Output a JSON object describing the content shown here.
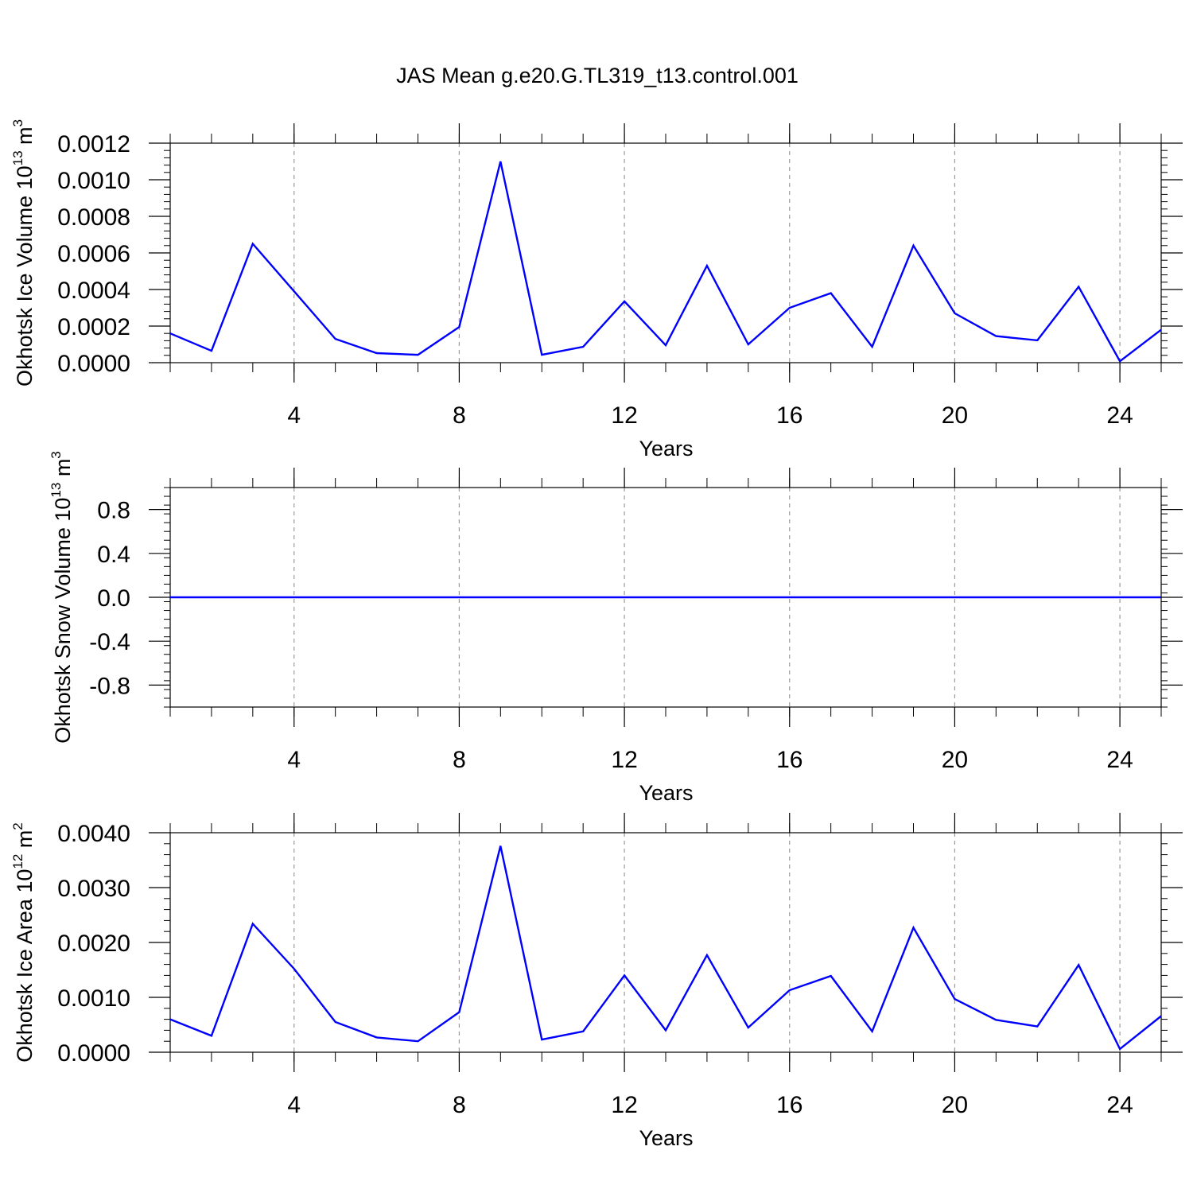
{
  "title": "JAS Mean g.e20.G.TL319_t13.control.001",
  "colors": {
    "line": "#0000ff",
    "axis": "#000000",
    "grid": "#9a9a9a",
    "background": "#ffffff"
  },
  "chart_data": [
    {
      "type": "line",
      "title": "JAS Mean g.e20.G.TL319_t13.control.001",
      "xlabel": "Years",
      "ylabel": {
        "text": "Okhotsk Ice Volume 10",
        "exponent": "13",
        "unit": "m",
        "unit_exponent": "3"
      },
      "xlim": [
        1,
        25
      ],
      "ylim": [
        0,
        0.0012
      ],
      "xticks": [
        4,
        8,
        12,
        16,
        20,
        24
      ],
      "xtick_labels": [
        "4",
        "8",
        "12",
        "16",
        "20",
        "24"
      ],
      "yticks": [
        0,
        0.0002,
        0.0004,
        0.0006,
        0.0008,
        0.001,
        0.0012
      ],
      "ytick_labels": [
        "0.0000",
        "0.0002",
        "0.0004",
        "0.0006",
        "0.0008",
        "0.0010",
        "0.0012"
      ],
      "grid": "vertical dashed at major x ticks",
      "x": [
        1,
        2,
        3,
        4,
        5,
        6,
        7,
        8,
        9,
        10,
        11,
        12,
        13,
        14,
        15,
        16,
        17,
        18,
        19,
        20,
        21,
        22,
        23,
        24,
        25
      ],
      "series": [
        {
          "values": [
            0.00016,
            6.5e-05,
            0.00065,
            0.00039,
            0.00013,
            5.2e-05,
            4.3e-05,
            0.000195,
            0.0011,
            4.3e-05,
            8.7e-05,
            0.000335,
            9.5e-05,
            0.00053,
            0.0001,
            0.0003,
            0.00038,
            8.7e-05,
            0.00064,
            0.00027,
            0.000145,
            0.000122,
            0.000415,
            8e-06,
            0.00018
          ]
        }
      ]
    },
    {
      "type": "line",
      "xlabel": "Years",
      "ylabel": {
        "text": "Okhotsk Snow Volume 10",
        "exponent": "13",
        "unit": "m",
        "unit_exponent": "3"
      },
      "xlim": [
        1,
        25
      ],
      "ylim": [
        -1,
        1
      ],
      "xticks": [
        4,
        8,
        12,
        16,
        20,
        24
      ],
      "xtick_labels": [
        "4",
        "8",
        "12",
        "16",
        "20",
        "24"
      ],
      "yticks": [
        -0.8,
        -0.4,
        0,
        0.4,
        0.8
      ],
      "ytick_labels": [
        "-0.8",
        "-0.4",
        "0.0",
        "0.4",
        "0.8"
      ],
      "grid": "vertical dashed at major x ticks",
      "x": [
        1,
        2,
        3,
        4,
        5,
        6,
        7,
        8,
        9,
        10,
        11,
        12,
        13,
        14,
        15,
        16,
        17,
        18,
        19,
        20,
        21,
        22,
        23,
        24,
        25
      ],
      "series": [
        {
          "values": [
            0,
            0,
            0,
            0,
            0,
            0,
            0,
            0,
            0,
            0,
            0,
            0,
            0,
            0,
            0,
            0,
            0,
            0,
            0,
            0,
            0,
            0,
            0,
            0,
            0
          ]
        }
      ]
    },
    {
      "type": "line",
      "xlabel": "Years",
      "ylabel": {
        "text": "Okhotsk Ice Area 10",
        "exponent": "12",
        "unit": "m",
        "unit_exponent": "2"
      },
      "xlim": [
        1,
        25
      ],
      "ylim": [
        0,
        0.004
      ],
      "xticks": [
        4,
        8,
        12,
        16,
        20,
        24
      ],
      "xtick_labels": [
        "4",
        "8",
        "12",
        "16",
        "20",
        "24"
      ],
      "yticks": [
        0,
        0.001,
        0.002,
        0.003,
        0.004
      ],
      "ytick_labels": [
        "0.0000",
        "0.0010",
        "0.0020",
        "0.0030",
        "0.0040"
      ],
      "grid": "vertical dashed at major x ticks",
      "x": [
        1,
        2,
        3,
        4,
        5,
        6,
        7,
        8,
        9,
        10,
        11,
        12,
        13,
        14,
        15,
        16,
        17,
        18,
        19,
        20,
        21,
        22,
        23,
        24,
        25
      ],
      "series": [
        {
          "values": [
            0.0006,
            0.0003,
            0.00234,
            0.00152,
            0.00055,
            0.00027,
            0.0002,
            0.00073,
            0.00376,
            0.00023,
            0.00038,
            0.0014,
            0.0004,
            0.00177,
            0.00045,
            0.00113,
            0.00139,
            0.00038,
            0.00227,
            0.00097,
            0.00059,
            0.00047,
            0.00159,
            6e-05,
            0.00066
          ]
        }
      ]
    }
  ]
}
